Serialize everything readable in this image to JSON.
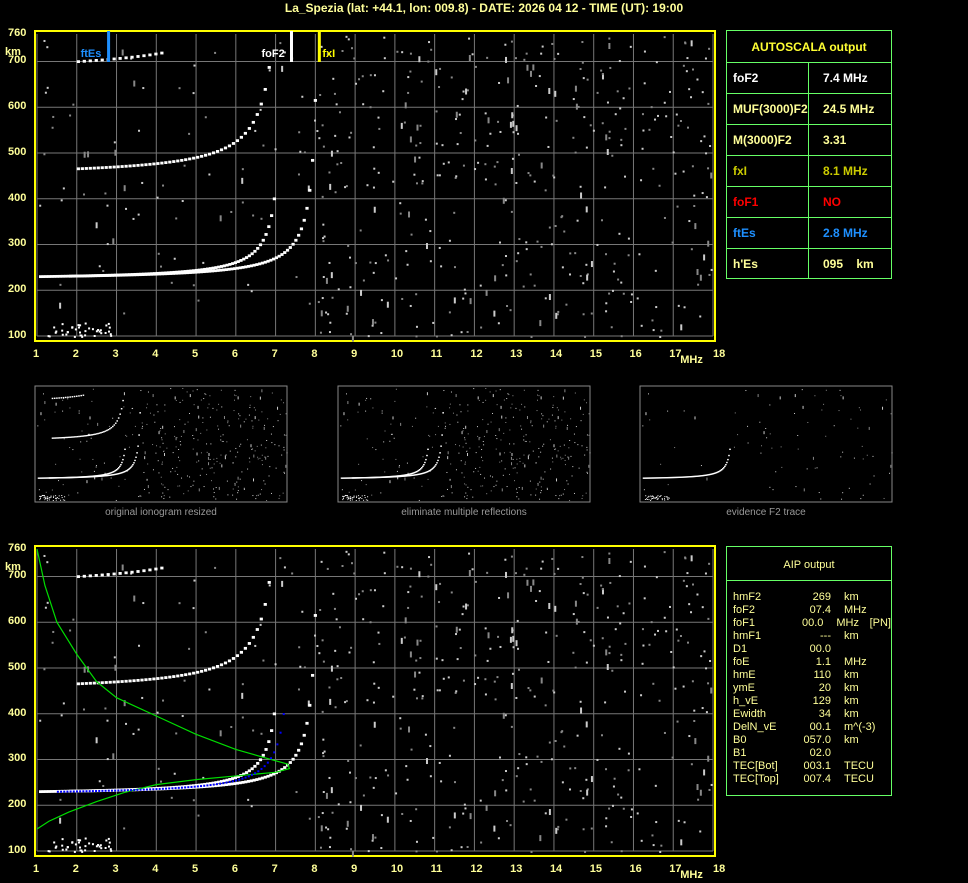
{
  "header": {
    "title": "La_Spezia (lat: +44.1, lon: 009.8) - DATE: 2026 04 12 - TIME (UT): 19:00"
  },
  "colors": {
    "frame": "#ffff00",
    "grid": "#808080",
    "table_border": "#66ff66",
    "ftEs": "#1e90ff",
    "foF2": "#ffffff",
    "fxI": "#ffff00",
    "foF1": "#ff0000",
    "profile": "#00ff00",
    "aip_trace": "#0000ff"
  },
  "chart_data": [
    {
      "type": "scatter",
      "title": "",
      "xlabel": "MHz",
      "ylabel": "km",
      "xlim": [
        1,
        18
      ],
      "ylim": [
        100,
        760
      ],
      "x_ticks": [
        "1",
        "2",
        "3",
        "4",
        "5",
        "6",
        "7",
        "8",
        "9",
        "10",
        "11",
        "12",
        "13",
        "14",
        "15",
        "16",
        "17",
        "18"
      ],
      "y_ticks": [
        "100",
        "200",
        "300",
        "400",
        "500",
        "600",
        "700",
        "760"
      ],
      "grid": true,
      "markers": [
        {
          "label": "ftEs",
          "freq": 2.8
        },
        {
          "label": "foF2",
          "freq": 7.4
        },
        {
          "label": "fxI",
          "freq": 8.1
        }
      ]
    },
    {
      "type": "scatter",
      "title": "",
      "xlabel": "MHz",
      "ylabel": "km",
      "xlim": [
        1,
        18
      ],
      "ylim": [
        100,
        760
      ],
      "x_ticks": [
        "1",
        "2",
        "3",
        "4",
        "5",
        "6",
        "7",
        "8",
        "9",
        "10",
        "11",
        "12",
        "13",
        "14",
        "15",
        "16",
        "17",
        "18"
      ],
      "y_ticks": [
        "100",
        "200",
        "300",
        "400",
        "500",
        "600",
        "700",
        "760"
      ],
      "grid": true,
      "profile": {
        "hmF2": 269,
        "foF2": 7.4
      }
    }
  ],
  "autoscala": {
    "title": "AUTOSCALA output",
    "rows": [
      {
        "k": "foF2",
        "v": "7.4 MHz",
        "color": "#ffffff"
      },
      {
        "k": "MUF(3000)F2",
        "v": "24.5 MHz",
        "color": "#ffff99"
      },
      {
        "k": "M(3000)F2",
        "v": "3.31",
        "color": "#ffff99"
      },
      {
        "k": "fxI",
        "v": "8.1 MHz",
        "color": "#cccc00"
      },
      {
        "k": "foF1",
        "v": "NO",
        "color": "#ff0000"
      },
      {
        "k": "ftEs",
        "v": "2.8 MHz",
        "color": "#1e90ff"
      },
      {
        "k": "h'Es",
        "v": "095    km",
        "color": "#ffff99"
      }
    ]
  },
  "aip": {
    "title": "AIP output",
    "rows": [
      [
        "hmF2",
        "269",
        "km",
        ""
      ],
      [
        "foF2",
        "07.4",
        "MHz",
        ""
      ],
      [
        "foF1",
        "00.0",
        "MHz",
        "[PN]"
      ],
      [
        "hmF1",
        "---",
        "km",
        ""
      ],
      [
        "D1",
        "00.0",
        "",
        ""
      ],
      [
        "foE",
        "1.1",
        "MHz",
        ""
      ],
      [
        "hmE",
        "110",
        "km",
        ""
      ],
      [
        "ymE",
        "20",
        "km",
        ""
      ],
      [
        "h_vE",
        "129",
        "km",
        ""
      ],
      [
        "Ewidth",
        "34",
        "km",
        ""
      ],
      [
        "DelN_vE",
        "00.1",
        "m^(-3)",
        ""
      ],
      [
        "B0",
        "057.0",
        "km",
        ""
      ],
      [
        "B1",
        "02.0",
        "",
        ""
      ],
      [
        "TEC[Bot]",
        "003.1",
        "TECU",
        ""
      ],
      [
        "TEC[Top]",
        "007.4",
        "TECU",
        ""
      ]
    ]
  },
  "thumbs": [
    "original ionogram resized",
    "eliminate multiple reflections",
    "evidence F2 trace"
  ]
}
